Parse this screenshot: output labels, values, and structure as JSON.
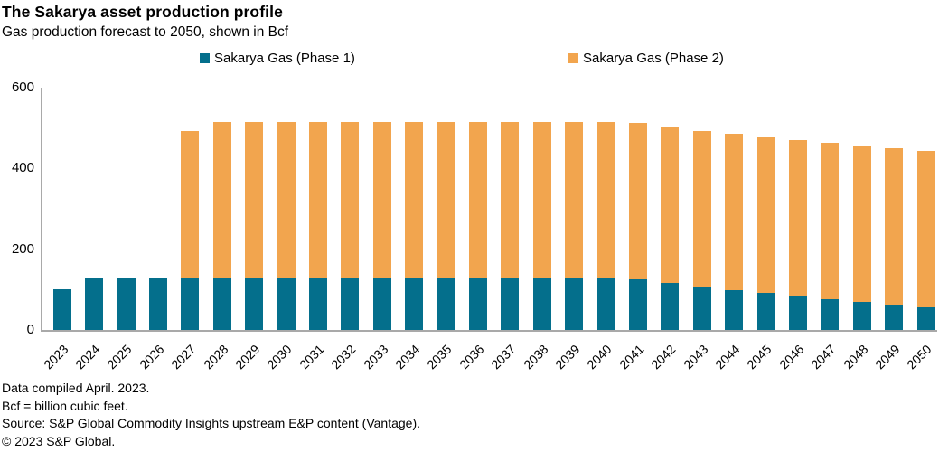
{
  "title": "The Sakarya asset production profile",
  "subtitle": "Gas production forecast to 2050, shown in Bcf",
  "legend": {
    "items": [
      {
        "label": "Sakarya Gas (Phase 1)",
        "color": "#046F8C"
      },
      {
        "label": "Sakarya Gas (Phase 2)",
        "color": "#F2A54E"
      }
    ]
  },
  "footnotes": [
    "Data compiled April. 2023.",
    "Bcf = billion cubic feet.",
    "Source: S&P Global Commodity Insights upstream E&P content (Vantage).",
    "© 2023 S&P Global."
  ],
  "chart_data": {
    "type": "bar",
    "stacked": true,
    "title": "The Sakarya asset production profile",
    "subtitle": "Gas production forecast to 2050, shown in Bcf",
    "unit": "Bcf",
    "categories": [
      "2023",
      "2024",
      "2025",
      "2026",
      "2027",
      "2028",
      "2029",
      "2030",
      "2031",
      "2032",
      "2033",
      "2034",
      "2035",
      "2036",
      "2037",
      "2038",
      "2039",
      "2040",
      "2041",
      "2042",
      "2043",
      "2044",
      "2045",
      "2046",
      "2047",
      "2048",
      "2049",
      "2050"
    ],
    "series": [
      {
        "name": "Sakarya Gas (Phase 1)",
        "color": "#046F8C",
        "values": [
          100,
          127,
          127,
          127,
          127,
          128,
          128,
          128,
          128,
          128,
          128,
          128,
          128,
          128,
          128,
          128,
          128,
          128,
          125,
          116,
          106,
          98,
          91,
          84,
          76,
          69,
          63,
          56
        ]
      },
      {
        "name": "Sakarya Gas (Phase 2)",
        "color": "#F2A54E",
        "values": [
          0,
          0,
          0,
          0,
          365,
          387,
          387,
          387,
          387,
          387,
          387,
          387,
          387,
          387,
          387,
          387,
          387,
          387,
          387,
          387,
          387,
          387,
          387,
          387,
          387,
          387,
          387,
          387
        ]
      }
    ],
    "xlabel": "",
    "ylabel": "",
    "ylim": [
      0,
      600
    ],
    "yticks": [
      0,
      200,
      400,
      600
    ],
    "grid": false,
    "legend_position": "top",
    "axis_color": "#A9A9A9"
  }
}
